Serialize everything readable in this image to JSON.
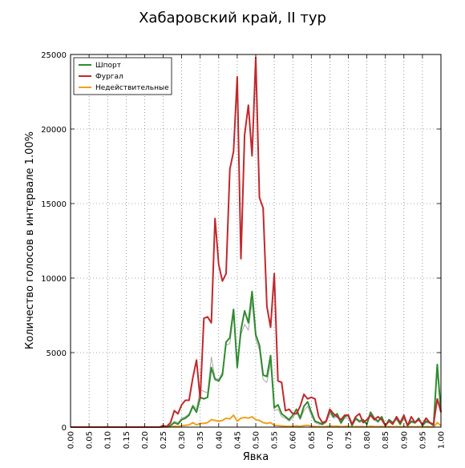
{
  "chart_data": {
    "type": "line",
    "title": "Хабаровский край, II тур",
    "xlabel": "Явка",
    "ylabel": "Количество голосов в интервале 1.00%",
    "xlim": [
      0,
      1
    ],
    "ylim": [
      0,
      25000
    ],
    "x_ticks": [
      "0.00",
      "0.05",
      "0.10",
      "0.15",
      "0.20",
      "0.25",
      "0.30",
      "0.35",
      "0.40",
      "0.45",
      "0.50",
      "0.55",
      "0.60",
      "0.65",
      "0.70",
      "0.75",
      "0.80",
      "0.85",
      "0.90",
      "0.95",
      "1.00"
    ],
    "y_ticks": [
      "0",
      "5000",
      "10000",
      "15000",
      "20000",
      "25000"
    ],
    "grid": true,
    "legend_position": "top-left",
    "x": [
      0.0,
      0.01,
      0.02,
      0.03,
      0.04,
      0.05,
      0.06,
      0.07,
      0.08,
      0.09,
      0.1,
      0.11,
      0.12,
      0.13,
      0.14,
      0.15,
      0.16,
      0.17,
      0.18,
      0.19,
      0.2,
      0.21,
      0.22,
      0.23,
      0.24,
      0.25,
      0.26,
      0.27,
      0.28,
      0.29,
      0.3,
      0.31,
      0.32,
      0.33,
      0.34,
      0.35,
      0.36,
      0.37,
      0.38,
      0.39,
      0.4,
      0.41,
      0.42,
      0.43,
      0.44,
      0.45,
      0.46,
      0.47,
      0.48,
      0.49,
      0.5,
      0.51,
      0.52,
      0.53,
      0.54,
      0.55,
      0.56,
      0.57,
      0.58,
      0.59,
      0.6,
      0.61,
      0.62,
      0.63,
      0.64,
      0.65,
      0.66,
      0.67,
      0.68,
      0.69,
      0.7,
      0.71,
      0.72,
      0.73,
      0.74,
      0.75,
      0.76,
      0.77,
      0.78,
      0.79,
      0.8,
      0.81,
      0.82,
      0.83,
      0.84,
      0.85,
      0.86,
      0.87,
      0.88,
      0.89,
      0.9,
      0.91,
      0.92,
      0.93,
      0.94,
      0.95,
      0.96,
      0.97,
      0.98,
      0.99,
      1.0
    ],
    "series": [
      {
        "name": "Шпорт",
        "color": "#2e8b2e",
        "values": [
          0,
          0,
          0,
          0,
          0,
          0,
          0,
          0,
          0,
          0,
          0,
          0,
          0,
          0,
          0,
          0,
          0,
          0,
          0,
          0,
          0,
          0,
          0,
          0,
          0,
          20,
          50,
          100,
          300,
          200,
          500,
          600,
          800,
          1400,
          1000,
          2000,
          1900,
          2000,
          4000,
          3200,
          3100,
          3500,
          5700,
          6000,
          7900,
          4000,
          6500,
          7800,
          7000,
          9100,
          6200,
          5500,
          3500,
          3400,
          4800,
          1300,
          1500,
          900,
          700,
          500,
          800,
          1200,
          600,
          1400,
          1700,
          1000,
          400,
          300,
          200,
          400,
          1100,
          700,
          900,
          300,
          700,
          800,
          100,
          600,
          400,
          500,
          200,
          1000,
          600,
          400,
          700,
          100,
          500,
          300,
          600,
          200,
          700,
          100,
          400,
          300,
          600,
          100,
          400,
          300,
          100,
          4200,
          1000
        ]
      },
      {
        "name": "Фургал",
        "color": "#c0282d",
        "values": [
          0,
          0,
          0,
          0,
          0,
          0,
          0,
          0,
          0,
          0,
          0,
          0,
          0,
          0,
          0,
          0,
          0,
          0,
          0,
          0,
          0,
          0,
          0,
          0,
          0,
          100,
          50,
          300,
          1100,
          900,
          1500,
          1800,
          1800,
          3300,
          4500,
          1900,
          7300,
          7400,
          7000,
          14000,
          10900,
          9800,
          10300,
          17300,
          18500,
          23500,
          11300,
          19600,
          21600,
          18200,
          24800,
          15400,
          14700,
          8100,
          6700,
          10300,
          3100,
          3000,
          1100,
          1200,
          900,
          900,
          1400,
          2200,
          1900,
          2000,
          1900,
          700,
          300,
          400,
          1200,
          900,
          700,
          500,
          800,
          800,
          200,
          700,
          900,
          300,
          500,
          800,
          500,
          700,
          500,
          100,
          400,
          200,
          700,
          300,
          800,
          100,
          700,
          300,
          500,
          200,
          600,
          300,
          200,
          1900,
          1000
        ]
      },
      {
        "name": "Недействительные",
        "color": "#f0a020",
        "values": [
          0,
          0,
          0,
          0,
          0,
          0,
          0,
          0,
          0,
          0,
          0,
          0,
          0,
          0,
          0,
          0,
          0,
          0,
          0,
          0,
          0,
          0,
          0,
          0,
          0,
          5,
          10,
          20,
          60,
          40,
          100,
          120,
          150,
          300,
          150,
          250,
          250,
          300,
          500,
          450,
          400,
          450,
          600,
          550,
          800,
          400,
          600,
          650,
          600,
          700,
          500,
          450,
          300,
          250,
          300,
          120,
          100,
          80,
          60,
          50,
          60,
          80,
          50,
          100,
          120,
          80,
          40,
          30,
          20,
          40,
          80,
          60,
          70,
          30,
          50,
          60,
          20,
          40,
          30,
          40,
          20,
          60,
          40,
          30,
          50,
          10,
          40,
          20,
          40,
          20,
          50,
          10,
          30,
          20,
          40,
          10,
          30,
          20,
          10,
          300,
          100
        ]
      },
      {
        "name": "",
        "color": "#aaaaaa",
        "values": [
          0,
          0,
          0,
          0,
          0,
          0,
          0,
          0,
          0,
          0,
          0,
          0,
          0,
          0,
          0,
          0,
          0,
          0,
          0,
          0,
          0,
          0,
          0,
          0,
          0,
          30,
          80,
          150,
          400,
          300,
          600,
          700,
          900,
          1500,
          1200,
          2500,
          2400,
          2300,
          4700,
          3300,
          3200,
          3700,
          5500,
          5600,
          7600,
          4300,
          6200,
          6900,
          6500,
          8400,
          5900,
          5200,
          3200,
          3000,
          4300,
          1100,
          1200,
          700,
          600,
          400,
          600,
          1000,
          500,
          1100,
          1400,
          800,
          300,
          200,
          150,
          300,
          900,
          600,
          700,
          200,
          600,
          600,
          100,
          500,
          300,
          400,
          150,
          800,
          500,
          300,
          600,
          100,
          400,
          250,
          500,
          150,
          600,
          80,
          300,
          250,
          500,
          80,
          300,
          250,
          80,
          3800,
          900
        ]
      }
    ]
  }
}
